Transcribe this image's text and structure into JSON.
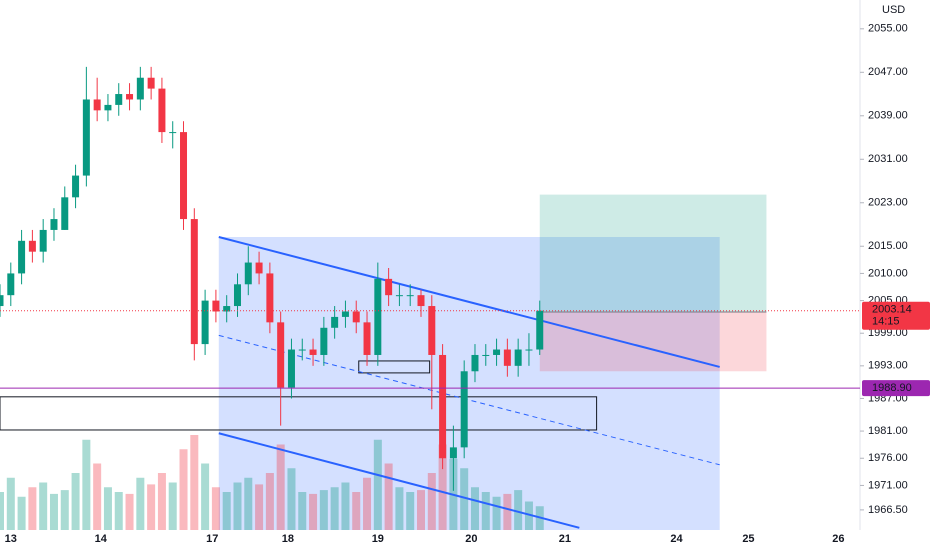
{
  "chart_data": {
    "type": "candlestick",
    "currency": "USD",
    "x": [
      0,
      3,
      6,
      9,
      12,
      15,
      18,
      21,
      24,
      27,
      30,
      33,
      36,
      39,
      42,
      45,
      48,
      51,
      54,
      57,
      60,
      63,
      66,
      69,
      72,
      75,
      78,
      81,
      84,
      87,
      90,
      93,
      96,
      99,
      102,
      105,
      108,
      111,
      114,
      117,
      120,
      123,
      126,
      129,
      132,
      135,
      138,
      141,
      144,
      147,
      150
    ],
    "ohlc": [
      [
        2004,
        2008,
        2002,
        2006
      ],
      [
        2006,
        2012,
        2004,
        2010
      ],
      [
        2010,
        2018,
        2008,
        2016
      ],
      [
        2016,
        2018,
        2012,
        2014
      ],
      [
        2014,
        2020,
        2012,
        2018
      ],
      [
        2018,
        2022,
        2016,
        2020
      ],
      [
        2018,
        2026,
        2018,
        2024
      ],
      [
        2024,
        2030,
        2022,
        2028
      ],
      [
        2028,
        2048,
        2026,
        2042
      ],
      [
        2042,
        2046,
        2038,
        2040
      ],
      [
        2040,
        2043,
        2038,
        2041
      ],
      [
        2041,
        2045,
        2039,
        2043
      ],
      [
        2043,
        2045,
        2040,
        2042
      ],
      [
        2042,
        2048,
        2040,
        2046
      ],
      [
        2046,
        2048,
        2042,
        2044
      ],
      [
        2044,
        2046,
        2034,
        2036
      ],
      [
        2036,
        2038,
        2033,
        2036
      ],
      [
        2036,
        2038,
        2018,
        2020
      ],
      [
        2020,
        2022,
        1994,
        1997
      ],
      [
        1997,
        2007,
        1995,
        2005
      ],
      [
        2005,
        2007,
        2001,
        2003
      ],
      [
        2003,
        2006,
        2001,
        2004
      ],
      [
        2004,
        2010,
        2002,
        2008
      ],
      [
        2008,
        2015,
        2006,
        2012
      ],
      [
        2012,
        2014,
        2008,
        2010
      ],
      [
        2010,
        2012,
        1999,
        2001
      ],
      [
        2001,
        2003,
        1982,
        1989
      ],
      [
        1989,
        1998,
        1987,
        1996
      ],
      [
        1996,
        1998,
        1994,
        1996
      ],
      [
        1996,
        1998,
        1993,
        1995
      ],
      [
        1995,
        2002,
        1993,
        2000
      ],
      [
        2000,
        2004,
        1998,
        2002
      ],
      [
        2002,
        2005,
        2000,
        2003
      ],
      [
        2003,
        2005,
        1999,
        2001
      ],
      [
        2001,
        2003,
        1993,
        1995
      ],
      [
        1995,
        2012,
        1993,
        2009
      ],
      [
        2009,
        2011,
        2004,
        2006
      ],
      [
        2006,
        2008,
        2004,
        2006
      ],
      [
        2006,
        2008,
        2004,
        2006
      ],
      [
        2006,
        2007,
        2002,
        2004
      ],
      [
        2004,
        2006,
        1985,
        1995
      ],
      [
        1995,
        1997,
        1974,
        1976
      ],
      [
        1976,
        1982,
        1970,
        1978
      ],
      [
        1978,
        1994,
        1976,
        1992
      ],
      [
        1992,
        1997,
        1990,
        1995
      ],
      [
        1995,
        1997,
        1993,
        1995
      ],
      [
        1995,
        1998,
        1993,
        1996
      ],
      [
        1996,
        1998,
        1991,
        1993
      ],
      [
        1993,
        1998,
        1991,
        1996
      ],
      [
        1996,
        1999,
        1993,
        1996
      ],
      [
        1996,
        2005,
        1995,
        2003.14
      ]
    ],
    "volumes": [
      40,
      55,
      35,
      45,
      50,
      38,
      42,
      60,
      95,
      70,
      45,
      40,
      38,
      55,
      48,
      60,
      50,
      85,
      100,
      70,
      45,
      40,
      50,
      55,
      48,
      60,
      90,
      65,
      40,
      38,
      42,
      45,
      50,
      40,
      55,
      95,
      70,
      45,
      40,
      42,
      60,
      90,
      75,
      65,
      45,
      40,
      35,
      38,
      42,
      30,
      25
    ],
    "ylim": [
      1962.8,
      2060.3
    ],
    "yticks": [
      {
        "value": 2055,
        "label": "2055.00"
      },
      {
        "value": 2047,
        "label": "2047.00"
      },
      {
        "value": 2039,
        "label": "2039.00"
      },
      {
        "value": 2031,
        "label": "2031.00"
      },
      {
        "value": 2023,
        "label": "2023.00"
      },
      {
        "value": 2015,
        "label": "2015.00"
      },
      {
        "value": 2010,
        "label": "2010.00"
      },
      {
        "value": 2005,
        "label": "2005.00"
      },
      {
        "value": 1999,
        "label": "1999.00"
      },
      {
        "value": 1993,
        "label": "1993.00"
      },
      {
        "value": 1987,
        "label": "1987.00"
      },
      {
        "value": 1981,
        "label": "1981.00"
      },
      {
        "value": 1976,
        "label": "1976.00"
      },
      {
        "value": 1971,
        "label": "1971.00"
      },
      {
        "value": 1966.5,
        "label": "1966.50"
      }
    ],
    "xlim": [
      0,
      239
    ],
    "xticks": [
      {
        "value": 3,
        "label": "13"
      },
      {
        "value": 28,
        "label": "14"
      },
      {
        "value": 59,
        "label": "17"
      },
      {
        "value": 80,
        "label": "18"
      },
      {
        "value": 105,
        "label": "19"
      },
      {
        "value": 131,
        "label": "20"
      },
      {
        "value": 157,
        "label": "21"
      },
      {
        "value": 188,
        "label": "24"
      },
      {
        "value": 208,
        "label": "25"
      },
      {
        "value": 233,
        "label": "26"
      }
    ],
    "up_color": "#089981",
    "down_color": "#f23645",
    "last_price": {
      "value": 2003.14,
      "countdown": "14:15"
    },
    "price_line": {
      "value": 1988.9,
      "label": "1988.90",
      "color": "#9c27b0"
    },
    "channel": {
      "upper": [
        [
          60.8,
          2016.7
        ],
        [
          200,
          1992.8
        ]
      ],
      "lower": [
        [
          60.8,
          1980.6
        ],
        [
          161,
          1963.2
        ]
      ],
      "middle": [
        [
          60.8,
          1998.6
        ],
        [
          200,
          1974.8
        ]
      ],
      "fill_bottom": 1962.8,
      "color": "#2962ff"
    },
    "long_position": {
      "x": [
        150,
        213
      ],
      "entry": 2002.9,
      "target": 2024.5,
      "stop": 1992
    },
    "rectangles": [
      {
        "x": [
          0,
          165.8
        ],
        "y": [
          1981.2,
          1987.3
        ]
      },
      {
        "x": [
          99.7,
          119.4
        ],
        "y": [
          1991.7,
          1993.9
        ]
      }
    ]
  }
}
